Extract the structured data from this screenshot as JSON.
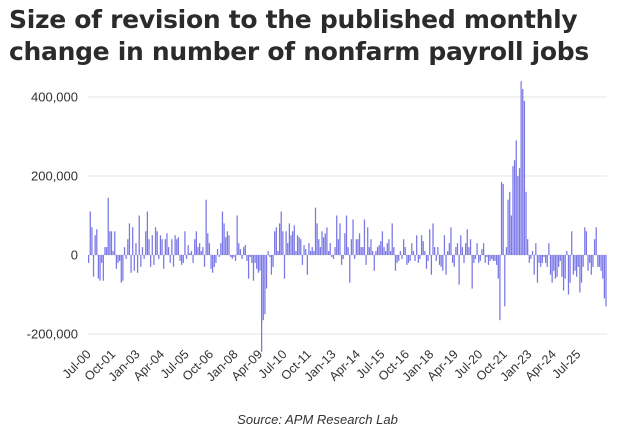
{
  "title": "Size of revision to the published monthly change in number of nonfarm payroll jobs",
  "source": "Source: APM Research Lab",
  "colors": {
    "bar": "#7b78e6",
    "grid": "#e6e6e6",
    "text": "#333333",
    "title": "#2b2b2b"
  },
  "chart_data": {
    "type": "bar",
    "title": "Size of revision to the published monthly change in number of nonfarm payroll jobs",
    "xlabel": "",
    "ylabel": "",
    "ylim": [
      -250000,
      450000
    ],
    "yticks": [
      400000,
      200000,
      0,
      -200000
    ],
    "ytick_labels": [
      "400,000",
      "200,000",
      "0",
      "-200,000"
    ],
    "grid": true,
    "legend": "none",
    "x_start": "Jul-00",
    "x_end": "Jul-25",
    "xtick_labels": [
      "Jul-00",
      "Oct-01",
      "Jan-03",
      "Apr-04",
      "Jul-05",
      "Oct-06",
      "Jan-08",
      "Apr-09",
      "Jul-10",
      "Oct-11",
      "Jan-13",
      "Apr-14",
      "Jul-15",
      "Oct-16",
      "Jan-18",
      "Apr-19",
      "Jul-20",
      "Oct-21",
      "Jan-23",
      "Apr-24",
      "Jul-25"
    ],
    "values": [
      -20000,
      110000,
      70000,
      -55000,
      50000,
      65000,
      -60000,
      -65000,
      -20000,
      -65000,
      20000,
      20000,
      145000,
      60000,
      60000,
      10000,
      60000,
      -35000,
      -20000,
      -15000,
      -70000,
      -65000,
      20000,
      -10000,
      40000,
      80000,
      -45000,
      70000,
      -40000,
      30000,
      -45000,
      100000,
      -30000,
      20000,
      -10000,
      60000,
      110000,
      40000,
      -30000,
      50000,
      -25000,
      70000,
      60000,
      -10000,
      50000,
      40000,
      -35000,
      40000,
      55000,
      20000,
      -20000,
      40000,
      -30000,
      50000,
      40000,
      45000,
      -15000,
      -25000,
      -20000,
      60000,
      -10000,
      25000,
      5000,
      10000,
      -20000,
      40000,
      60000,
      20000,
      30000,
      10000,
      20000,
      -30000,
      140000,
      55000,
      30000,
      -35000,
      -45000,
      -30000,
      -20000,
      15000,
      -5000,
      30000,
      110000,
      80000,
      45000,
      60000,
      50000,
      -5000,
      -10000,
      -5000,
      -15000,
      100000,
      30000,
      15000,
      -10000,
      20000,
      25000,
      -15000,
      -60000,
      -5000,
      -20000,
      -65000,
      -20000,
      -35000,
      -45000,
      -40000,
      -245000,
      -165000,
      -150000,
      -85000,
      10000,
      -5000,
      -50000,
      -30000,
      60000,
      70000,
      10000,
      80000,
      110000,
      60000,
      -60000,
      60000,
      30000,
      80000,
      50000,
      60000,
      75000,
      10000,
      50000,
      45000,
      40000,
      -25000,
      25000,
      15000,
      -50000,
      30000,
      10000,
      20000,
      10000,
      120000,
      80000,
      40000,
      20000,
      60000,
      45000,
      55000,
      70000,
      10000,
      30000,
      -5000,
      -10000,
      20000,
      100000,
      40000,
      80000,
      -25000,
      -10000,
      55000,
      100000,
      20000,
      -70000,
      40000,
      90000,
      -10000,
      40000,
      40000,
      55000,
      20000,
      20000,
      90000,
      -25000,
      70000,
      20000,
      40000,
      10000,
      -40000,
      10000,
      20000,
      25000,
      35000,
      60000,
      20000,
      10000,
      30000,
      40000,
      10000,
      80000,
      20000,
      -40000,
      -20000,
      -15000,
      10000,
      -10000,
      40000,
      20000,
      -25000,
      -20000,
      -15000,
      30000,
      10000,
      -15000,
      50000,
      -20000,
      -10000,
      50000,
      35000,
      10000,
      -35000,
      -15000,
      65000,
      -50000,
      80000,
      20000,
      -15000,
      20000,
      -25000,
      -30000,
      -40000,
      50000,
      -50000,
      10000,
      30000,
      70000,
      -20000,
      -30000,
      20000,
      30000,
      -75000,
      50000,
      20000,
      -20000,
      30000,
      65000,
      20000,
      40000,
      -85000,
      -20000,
      -10000,
      30000,
      -20000,
      -15000,
      15000,
      30000,
      -20000,
      -5000,
      -25000,
      -15000,
      -10000,
      -15000,
      -15000,
      -25000,
      -60000,
      -165000,
      185000,
      180000,
      -130000,
      20000,
      140000,
      160000,
      100000,
      225000,
      240000,
      290000,
      200000,
      220000,
      440000,
      420000,
      390000,
      160000,
      40000,
      -20000,
      -10000,
      10000,
      -50000,
      30000,
      -70000,
      -20000,
      -30000,
      -20000,
      -5000,
      -20000,
      -30000,
      30000,
      -50000,
      -70000,
      -40000,
      -60000,
      -55000,
      -30000,
      -15000,
      -55000,
      -90000,
      -60000,
      10000,
      -100000,
      -70000,
      60000,
      -50000,
      -40000,
      -55000,
      -30000,
      -95000,
      -70000,
      -30000,
      70000,
      60000,
      -40000,
      -20000,
      -50000,
      -30000,
      40000,
      70000,
      -30000,
      -30000,
      -40000,
      -60000,
      -110000,
      -130000
    ]
  }
}
